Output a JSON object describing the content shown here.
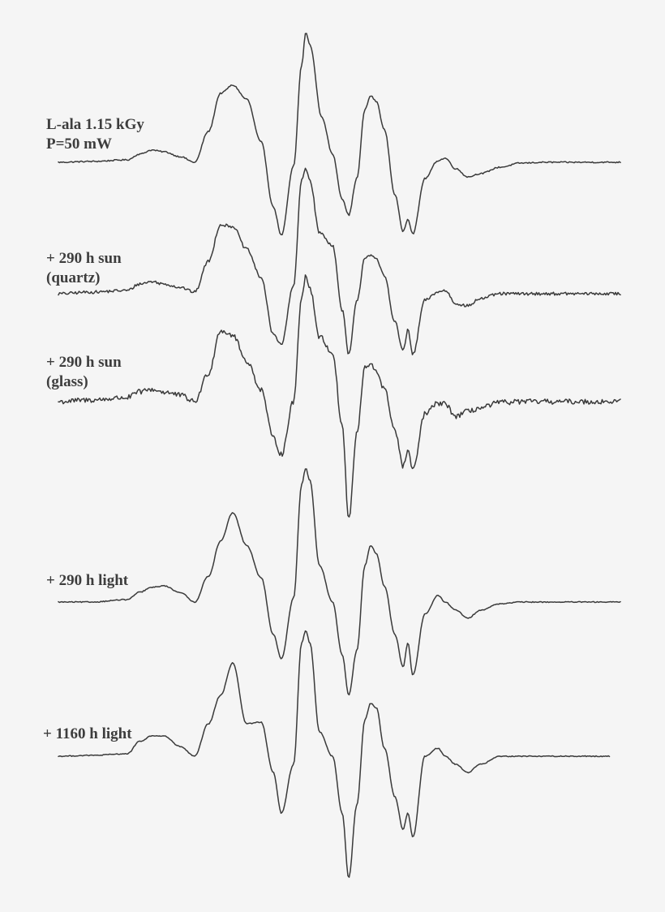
{
  "chart_data": {
    "type": "line",
    "title": "",
    "xlabel": "",
    "ylabel": "",
    "grid": false,
    "legend": "none",
    "line_color": "#3a3a3a",
    "text_color": "#3d3d3d",
    "background": "#f5f5f5",
    "series": [
      {
        "label_lines": [
          "L-ala 1.15 kGy",
          "P=50 mW"
        ],
        "noise": 0.8,
        "points": [
          [
            0,
            0
          ],
          [
            40,
            1
          ],
          [
            85,
            3
          ],
          [
            100,
            10
          ],
          [
            115,
            15
          ],
          [
            130,
            13
          ],
          [
            150,
            7
          ],
          [
            168,
            0
          ],
          [
            185,
            38
          ],
          [
            200,
            85
          ],
          [
            215,
            95
          ],
          [
            232,
            78
          ],
          [
            250,
            25
          ],
          [
            265,
            -55
          ],
          [
            275,
            -90
          ],
          [
            290,
            -5
          ],
          [
            300,
            120
          ],
          [
            305,
            160
          ],
          [
            310,
            145
          ],
          [
            325,
            55
          ],
          [
            338,
            10
          ],
          [
            350,
            -45
          ],
          [
            358,
            -65
          ],
          [
            368,
            -20
          ],
          [
            378,
            65
          ],
          [
            385,
            82
          ],
          [
            392,
            75
          ],
          [
            402,
            40
          ],
          [
            415,
            -40
          ],
          [
            425,
            -85
          ],
          [
            431,
            -70
          ],
          [
            437,
            -88
          ],
          [
            452,
            -20
          ],
          [
            468,
            2
          ],
          [
            477,
            5
          ],
          [
            490,
            -8
          ],
          [
            505,
            -18
          ],
          [
            520,
            -14
          ],
          [
            545,
            -6
          ],
          [
            570,
            -1
          ],
          [
            600,
            0
          ],
          [
            690,
            0
          ]
        ]
      },
      {
        "label_lines": [
          "+ 290 h sun",
          "(quartz)"
        ],
        "noise": 1.8,
        "points": [
          [
            0,
            0
          ],
          [
            40,
            2
          ],
          [
            85,
            4
          ],
          [
            100,
            12
          ],
          [
            115,
            15
          ],
          [
            130,
            12
          ],
          [
            150,
            8
          ],
          [
            168,
            2
          ],
          [
            185,
            40
          ],
          [
            200,
            85
          ],
          [
            215,
            83
          ],
          [
            232,
            55
          ],
          [
            250,
            20
          ],
          [
            265,
            -50
          ],
          [
            275,
            -62
          ],
          [
            290,
            10
          ],
          [
            300,
            140
          ],
          [
            305,
            155
          ],
          [
            310,
            140
          ],
          [
            322,
            75
          ],
          [
            338,
            60
          ],
          [
            350,
            -20
          ],
          [
            358,
            -75
          ],
          [
            368,
            -10
          ],
          [
            378,
            45
          ],
          [
            385,
            48
          ],
          [
            392,
            42
          ],
          [
            402,
            22
          ],
          [
            415,
            -35
          ],
          [
            425,
            -70
          ],
          [
            431,
            -45
          ],
          [
            437,
            -75
          ],
          [
            452,
            -8
          ],
          [
            468,
            2
          ],
          [
            477,
            4
          ],
          [
            490,
            -12
          ],
          [
            505,
            -15
          ],
          [
            520,
            -6
          ],
          [
            545,
            0
          ],
          [
            570,
            0
          ],
          [
            600,
            0
          ],
          [
            690,
            0
          ]
        ]
      },
      {
        "label_lines": [
          "+ 290 h sun",
          "(glass)"
        ],
        "noise": 3.2,
        "points": [
          [
            0,
            0
          ],
          [
            40,
            2
          ],
          [
            85,
            5
          ],
          [
            100,
            12
          ],
          [
            115,
            15
          ],
          [
            130,
            12
          ],
          [
            150,
            8
          ],
          [
            168,
            0
          ],
          [
            185,
            35
          ],
          [
            200,
            88
          ],
          [
            215,
            82
          ],
          [
            232,
            50
          ],
          [
            250,
            15
          ],
          [
            265,
            -45
          ],
          [
            275,
            -65
          ],
          [
            290,
            0
          ],
          [
            300,
            130
          ],
          [
            305,
            155
          ],
          [
            310,
            140
          ],
          [
            322,
            80
          ],
          [
            338,
            60
          ],
          [
            350,
            -30
          ],
          [
            358,
            -145
          ],
          [
            368,
            -40
          ],
          [
            378,
            42
          ],
          [
            385,
            45
          ],
          [
            392,
            38
          ],
          [
            402,
            15
          ],
          [
            415,
            -35
          ],
          [
            425,
            -80
          ],
          [
            431,
            -60
          ],
          [
            437,
            -85
          ],
          [
            452,
            -15
          ],
          [
            468,
            -2
          ],
          [
            477,
            -3
          ],
          [
            490,
            -18
          ],
          [
            505,
            -12
          ],
          [
            520,
            -8
          ],
          [
            545,
            -1
          ],
          [
            570,
            0
          ],
          [
            600,
            0
          ],
          [
            690,
            0
          ]
        ]
      },
      {
        "label_lines": [
          "+ 290 h light"
        ],
        "noise": 0.6,
        "points": [
          [
            0,
            0
          ],
          [
            40,
            0
          ],
          [
            85,
            3
          ],
          [
            100,
            12
          ],
          [
            115,
            18
          ],
          [
            130,
            20
          ],
          [
            150,
            12
          ],
          [
            168,
            0
          ],
          [
            185,
            32
          ],
          [
            200,
            75
          ],
          [
            215,
            110
          ],
          [
            232,
            70
          ],
          [
            250,
            30
          ],
          [
            265,
            -40
          ],
          [
            275,
            -70
          ],
          [
            290,
            5
          ],
          [
            300,
            145
          ],
          [
            305,
            165
          ],
          [
            310,
            150
          ],
          [
            322,
            45
          ],
          [
            338,
            0
          ],
          [
            350,
            -65
          ],
          [
            358,
            -115
          ],
          [
            368,
            -60
          ],
          [
            378,
            45
          ],
          [
            385,
            70
          ],
          [
            392,
            60
          ],
          [
            402,
            20
          ],
          [
            415,
            -40
          ],
          [
            425,
            -80
          ],
          [
            431,
            -50
          ],
          [
            437,
            -90
          ],
          [
            452,
            -15
          ],
          [
            468,
            8
          ],
          [
            477,
            0
          ],
          [
            490,
            -10
          ],
          [
            505,
            -20
          ],
          [
            520,
            -10
          ],
          [
            545,
            -2
          ],
          [
            570,
            0
          ],
          [
            600,
            0
          ],
          [
            690,
            0
          ]
        ]
      },
      {
        "label_lines": [
          "+ 1160 h light"
        ],
        "noise": 0.6,
        "points": [
          [
            0,
            0
          ],
          [
            40,
            1
          ],
          [
            85,
            3
          ],
          [
            100,
            18
          ],
          [
            115,
            25
          ],
          [
            130,
            25
          ],
          [
            150,
            12
          ],
          [
            168,
            0
          ],
          [
            185,
            40
          ],
          [
            200,
            75
          ],
          [
            215,
            115
          ],
          [
            232,
            40
          ],
          [
            250,
            42
          ],
          [
            265,
            -20
          ],
          [
            275,
            -70
          ],
          [
            290,
            -10
          ],
          [
            300,
            140
          ],
          [
            305,
            155
          ],
          [
            310,
            140
          ],
          [
            322,
            30
          ],
          [
            338,
            0
          ],
          [
            350,
            -70
          ],
          [
            358,
            -150
          ],
          [
            368,
            -60
          ],
          [
            378,
            45
          ],
          [
            385,
            65
          ],
          [
            392,
            60
          ],
          [
            402,
            10
          ],
          [
            415,
            -50
          ],
          [
            425,
            -90
          ],
          [
            431,
            -70
          ],
          [
            437,
            -100
          ],
          [
            452,
            0
          ],
          [
            468,
            10
          ],
          [
            477,
            0
          ],
          [
            490,
            -10
          ],
          [
            505,
            -20
          ],
          [
            520,
            -10
          ],
          [
            545,
            0
          ],
          [
            570,
            0
          ],
          [
            600,
            0
          ],
          [
            690,
            0
          ]
        ]
      }
    ]
  }
}
